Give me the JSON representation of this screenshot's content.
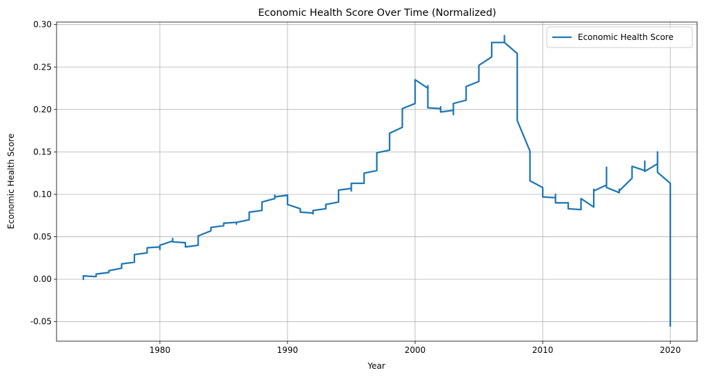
{
  "chart_data": {
    "type": "line",
    "title": "Economic Health Score Over Time (Normalized)",
    "xlabel": "Year",
    "ylabel": "Economic Health Score",
    "xlim": [
      1971.9,
      2022.1
    ],
    "ylim": [
      -0.073,
      0.303
    ],
    "xticks": [
      1980,
      1990,
      2000,
      2010,
      2020
    ],
    "yticks": [
      -0.05,
      0.0,
      0.05,
      0.1,
      0.15,
      0.2,
      0.25,
      0.3
    ],
    "grid": true,
    "legend_position": "top-right",
    "series": [
      {
        "name": "Economic Health Score",
        "color": "#1f77b4",
        "points": [
          [
            1974,
            0.0
          ],
          [
            1974,
            0.004
          ],
          [
            1975,
            0.003
          ],
          [
            1975,
            0.006
          ],
          [
            1976,
            0.008
          ],
          [
            1976,
            0.01
          ],
          [
            1977,
            0.013
          ],
          [
            1977,
            0.018
          ],
          [
            1978,
            0.02
          ],
          [
            1978,
            0.029
          ],
          [
            1979,
            0.031
          ],
          [
            1979,
            0.037
          ],
          [
            1980,
            0.038
          ],
          [
            1980,
            0.035
          ],
          [
            1980,
            0.04
          ],
          [
            1981,
            0.045
          ],
          [
            1981,
            0.048
          ],
          [
            1981,
            0.044
          ],
          [
            1982,
            0.043
          ],
          [
            1982,
            0.038
          ],
          [
            1983,
            0.04
          ],
          [
            1983,
            0.051
          ],
          [
            1984,
            0.057
          ],
          [
            1984,
            0.061
          ],
          [
            1985,
            0.063
          ],
          [
            1985,
            0.066
          ],
          [
            1986,
            0.067
          ],
          [
            1986,
            0.065
          ],
          [
            1986,
            0.067
          ],
          [
            1987,
            0.07
          ],
          [
            1987,
            0.079
          ],
          [
            1988,
            0.081
          ],
          [
            1988,
            0.091
          ],
          [
            1989,
            0.095
          ],
          [
            1989,
            0.099
          ],
          [
            1989,
            0.097
          ],
          [
            1990,
            0.099
          ],
          [
            1990,
            0.088
          ],
          [
            1991,
            0.083
          ],
          [
            1991,
            0.079
          ],
          [
            1992,
            0.078
          ],
          [
            1992,
            0.077
          ],
          [
            1992,
            0.081
          ],
          [
            1993,
            0.083
          ],
          [
            1993,
            0.088
          ],
          [
            1994,
            0.091
          ],
          [
            1994,
            0.105
          ],
          [
            1995,
            0.107
          ],
          [
            1995,
            0.104
          ],
          [
            1995,
            0.113
          ],
          [
            1996,
            0.113
          ],
          [
            1996,
            0.125
          ],
          [
            1997,
            0.128
          ],
          [
            1997,
            0.149
          ],
          [
            1998,
            0.152
          ],
          [
            1998,
            0.172
          ],
          [
            1999,
            0.179
          ],
          [
            1999,
            0.201
          ],
          [
            2000,
            0.207
          ],
          [
            2000,
            0.235
          ],
          [
            2001,
            0.225
          ],
          [
            2001,
            0.228
          ],
          [
            2001,
            0.202
          ],
          [
            2002,
            0.201
          ],
          [
            2002,
            0.203
          ],
          [
            2002,
            0.197
          ],
          [
            2003,
            0.199
          ],
          [
            2003,
            0.194
          ],
          [
            2003,
            0.207
          ],
          [
            2004,
            0.211
          ],
          [
            2004,
            0.227
          ],
          [
            2005,
            0.233
          ],
          [
            2005,
            0.252
          ],
          [
            2006,
            0.262
          ],
          [
            2006,
            0.279
          ],
          [
            2007,
            0.279
          ],
          [
            2007,
            0.287
          ],
          [
            2007,
            0.279
          ],
          [
            2008,
            0.266
          ],
          [
            2008,
            0.187
          ],
          [
            2009,
            0.151
          ],
          [
            2009,
            0.116
          ],
          [
            2010,
            0.108
          ],
          [
            2010,
            0.097
          ],
          [
            2011,
            0.096
          ],
          [
            2011,
            0.1
          ],
          [
            2011,
            0.09
          ],
          [
            2012,
            0.09
          ],
          [
            2012,
            0.083
          ],
          [
            2013,
            0.082
          ],
          [
            2013,
            0.095
          ],
          [
            2014,
            0.085
          ],
          [
            2014,
            0.106
          ],
          [
            2014,
            0.104
          ],
          [
            2015,
            0.111
          ],
          [
            2015,
            0.132
          ],
          [
            2015,
            0.108
          ],
          [
            2016,
            0.102
          ],
          [
            2016,
            0.106
          ],
          [
            2016,
            0.104
          ],
          [
            2017,
            0.119
          ],
          [
            2017,
            0.133
          ],
          [
            2018,
            0.128
          ],
          [
            2018,
            0.139
          ],
          [
            2018,
            0.127
          ],
          [
            2019,
            0.136
          ],
          [
            2019,
            0.15
          ],
          [
            2019,
            0.126
          ],
          [
            2020,
            0.113
          ],
          [
            2020,
            -0.055
          ]
        ]
      }
    ]
  }
}
